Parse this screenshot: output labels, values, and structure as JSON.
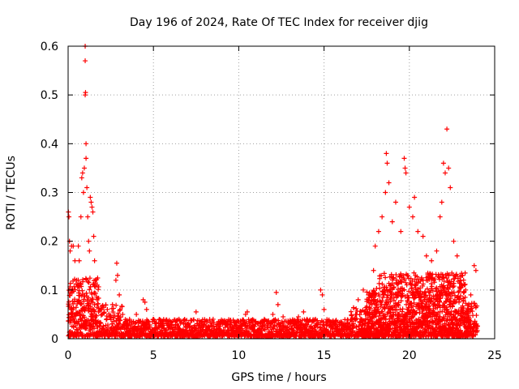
{
  "chart_data": {
    "type": "scatter",
    "title": "Day 196 of 2024, Rate Of TEC Index for receiver djig",
    "xlabel": "GPS time / hours",
    "ylabel": "ROTI / TECUs",
    "xlim": [
      0,
      25
    ],
    "ylim": [
      0,
      0.6
    ],
    "xticks": [
      0,
      5,
      10,
      15,
      20,
      25
    ],
    "xtick_labels": [
      "0",
      "5",
      "10",
      "15",
      "20",
      "25"
    ],
    "yticks": [
      0,
      0.1,
      0.2,
      0.3,
      0.4,
      0.5,
      0.6
    ],
    "ytick_labels": [
      "0",
      "0.1",
      "0.2",
      "0.3",
      "0.4",
      "0.5",
      "0.6"
    ],
    "grid": true,
    "marker": "+",
    "color": "#ff0000",
    "series": [
      {
        "name": "ROTI",
        "points": [
          [
            0.02,
            0.26
          ],
          [
            0.05,
            0.25
          ],
          [
            0.08,
            0.2
          ],
          [
            0.12,
            0.18
          ],
          [
            0.2,
            0.19
          ],
          [
            0.3,
            0.19
          ],
          [
            0.4,
            0.16
          ],
          [
            0.5,
            0.12
          ],
          [
            0.6,
            0.19
          ],
          [
            0.65,
            0.16
          ],
          [
            0.75,
            0.25
          ],
          [
            0.8,
            0.33
          ],
          [
            0.85,
            0.34
          ],
          [
            0.9,
            0.3
          ],
          [
            0.95,
            0.35
          ],
          [
            1.0,
            0.6
          ],
          [
            1.0,
            0.57
          ],
          [
            1.02,
            0.505
          ],
          [
            1.0,
            0.5
          ],
          [
            1.05,
            0.4
          ],
          [
            1.05,
            0.37
          ],
          [
            1.1,
            0.31
          ],
          [
            1.15,
            0.25
          ],
          [
            1.2,
            0.2
          ],
          [
            1.25,
            0.18
          ],
          [
            1.3,
            0.29
          ],
          [
            1.35,
            0.28
          ],
          [
            1.4,
            0.27
          ],
          [
            1.45,
            0.26
          ],
          [
            1.5,
            0.21
          ],
          [
            1.55,
            0.16
          ],
          [
            1.6,
            0.12
          ],
          [
            1.7,
            0.08
          ],
          [
            2.0,
            0.05
          ],
          [
            2.3,
            0.06
          ],
          [
            2.6,
            0.07
          ],
          [
            2.8,
            0.12
          ],
          [
            2.85,
            0.155
          ],
          [
            2.9,
            0.13
          ],
          [
            3.0,
            0.09
          ],
          [
            3.2,
            0.05
          ],
          [
            3.6,
            0.04
          ],
          [
            4.0,
            0.05
          ],
          [
            4.4,
            0.08
          ],
          [
            4.5,
            0.075
          ],
          [
            4.6,
            0.06
          ],
          [
            5.0,
            0.04
          ],
          [
            5.5,
            0.03
          ],
          [
            6.0,
            0.035
          ],
          [
            6.5,
            0.04
          ],
          [
            7.0,
            0.03
          ],
          [
            7.5,
            0.055
          ],
          [
            8.0,
            0.035
          ],
          [
            8.5,
            0.04
          ],
          [
            9.0,
            0.035
          ],
          [
            9.5,
            0.03
          ],
          [
            10.0,
            0.035
          ],
          [
            10.4,
            0.05
          ],
          [
            10.5,
            0.055
          ],
          [
            11.0,
            0.035
          ],
          [
            11.5,
            0.04
          ],
          [
            12.0,
            0.05
          ],
          [
            12.2,
            0.095
          ],
          [
            12.3,
            0.07
          ],
          [
            12.6,
            0.045
          ],
          [
            13.0,
            0.035
          ],
          [
            13.5,
            0.045
          ],
          [
            13.8,
            0.055
          ],
          [
            14.0,
            0.04
          ],
          [
            14.5,
            0.04
          ],
          [
            14.8,
            0.1
          ],
          [
            14.9,
            0.09
          ],
          [
            15.0,
            0.06
          ],
          [
            15.5,
            0.035
          ],
          [
            16.0,
            0.035
          ],
          [
            16.5,
            0.03
          ],
          [
            16.9,
            0.05
          ],
          [
            17.0,
            0.08
          ],
          [
            17.3,
            0.1
          ],
          [
            17.6,
            0.09
          ],
          [
            17.9,
            0.14
          ],
          [
            18.0,
            0.19
          ],
          [
            18.2,
            0.22
          ],
          [
            18.4,
            0.25
          ],
          [
            18.6,
            0.3
          ],
          [
            18.65,
            0.38
          ],
          [
            18.7,
            0.36
          ],
          [
            18.8,
            0.32
          ],
          [
            19.0,
            0.24
          ],
          [
            19.2,
            0.28
          ],
          [
            19.5,
            0.22
          ],
          [
            19.7,
            0.37
          ],
          [
            19.75,
            0.35
          ],
          [
            19.8,
            0.34
          ],
          [
            20.0,
            0.27
          ],
          [
            20.2,
            0.25
          ],
          [
            20.3,
            0.29
          ],
          [
            20.5,
            0.22
          ],
          [
            20.8,
            0.21
          ],
          [
            21.0,
            0.17
          ],
          [
            21.3,
            0.16
          ],
          [
            21.6,
            0.18
          ],
          [
            21.8,
            0.25
          ],
          [
            21.9,
            0.28
          ],
          [
            22.0,
            0.36
          ],
          [
            22.1,
            0.34
          ],
          [
            22.2,
            0.43
          ],
          [
            22.3,
            0.35
          ],
          [
            22.4,
            0.31
          ],
          [
            22.6,
            0.2
          ],
          [
            22.8,
            0.17
          ],
          [
            23.0,
            0.12
          ],
          [
            23.3,
            0.1
          ],
          [
            23.6,
            0.09
          ],
          [
            23.8,
            0.15
          ],
          [
            23.9,
            0.14
          ]
        ]
      }
    ]
  }
}
